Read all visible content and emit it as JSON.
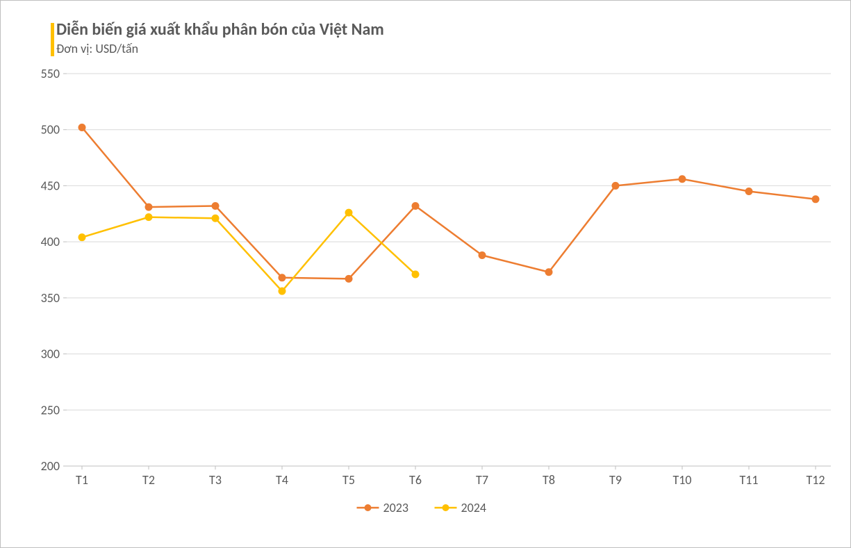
{
  "title": {
    "main": "Diễn biến giá xuất khẩu phân bón của Việt Nam",
    "sub": "Đơn vị: USD/tấn",
    "accent_color": "#ffc000",
    "text_color": "#595959",
    "main_fontsize": 24,
    "sub_fontsize": 18
  },
  "chart": {
    "type": "line",
    "background_color": "#ffffff",
    "border_color": "#bfbfbf",
    "axis_color": "#bfbfbf",
    "grid_color": "#d9d9d9",
    "tick_color": "#595959",
    "tick_fontsize": 18,
    "categories": [
      "T1",
      "T2",
      "T3",
      "T4",
      "T5",
      "T6",
      "T7",
      "T8",
      "T9",
      "T10",
      "T11",
      "T12"
    ],
    "ylim": [
      200,
      550
    ],
    "ytick_step": 50,
    "series": [
      {
        "name": "2023",
        "color": "#ed7d31",
        "marker": "circle",
        "marker_size": 5,
        "line_width": 2.5,
        "values": [
          502,
          431,
          432,
          368,
          367,
          432,
          388,
          373,
          450,
          456,
          445,
          438
        ]
      },
      {
        "name": "2024",
        "color": "#ffc000",
        "marker": "circle",
        "marker_size": 5,
        "line_width": 2.5,
        "values": [
          404,
          422,
          421,
          356,
          426,
          371,
          null,
          null,
          null,
          null,
          null,
          null
        ]
      }
    ],
    "legend": {
      "position": "bottom",
      "items": [
        "2023",
        "2024"
      ],
      "fontsize": 18
    }
  }
}
